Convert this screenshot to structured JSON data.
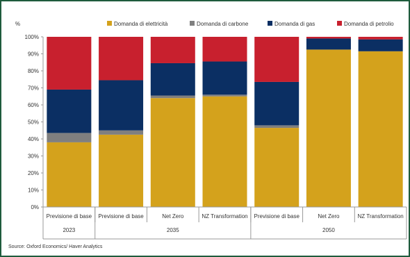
{
  "chart_data": {
    "type": "bar",
    "stacked": true,
    "y_unit_label": "%",
    "ylim": [
      0,
      100
    ],
    "ytick_labels": [
      "0%",
      "10%",
      "20%",
      "30%",
      "40%",
      "50%",
      "60%",
      "70%",
      "80%",
      "90%",
      "100%"
    ],
    "categories": [
      "Previsione di base",
      "Previsione di base",
      "Net Zero",
      "NZ Transformation",
      "Previsione di base",
      "Net Zero",
      "NZ Transformation"
    ],
    "groups": [
      {
        "label": "2023",
        "span": 1
      },
      {
        "label": "2035",
        "span": 3
      },
      {
        "label": "2050",
        "span": 3
      }
    ],
    "series": [
      {
        "name": "Domanda di elettricità",
        "color": "#d4a21c",
        "values": [
          38,
          42.5,
          64,
          65,
          46.5,
          92.5,
          91.5
        ]
      },
      {
        "name": "Domanda di carbone",
        "color": "#7f7f7f",
        "values": [
          5.5,
          2.5,
          1.5,
          1,
          1.5,
          0,
          0
        ]
      },
      {
        "name": "Domanda di gas",
        "color": "#0b2f63",
        "values": [
          25.5,
          29.5,
          19,
          19.5,
          25.5,
          6.5,
          7
        ]
      },
      {
        "name": "Domanda di petrolio",
        "color": "#c8202e",
        "values": [
          31,
          25.5,
          15.5,
          14.5,
          26.5,
          1,
          1.5
        ]
      }
    ],
    "legend_position": "top",
    "grid": false
  },
  "source_text": "Source: Oxford Economics/ Haver Analytics"
}
